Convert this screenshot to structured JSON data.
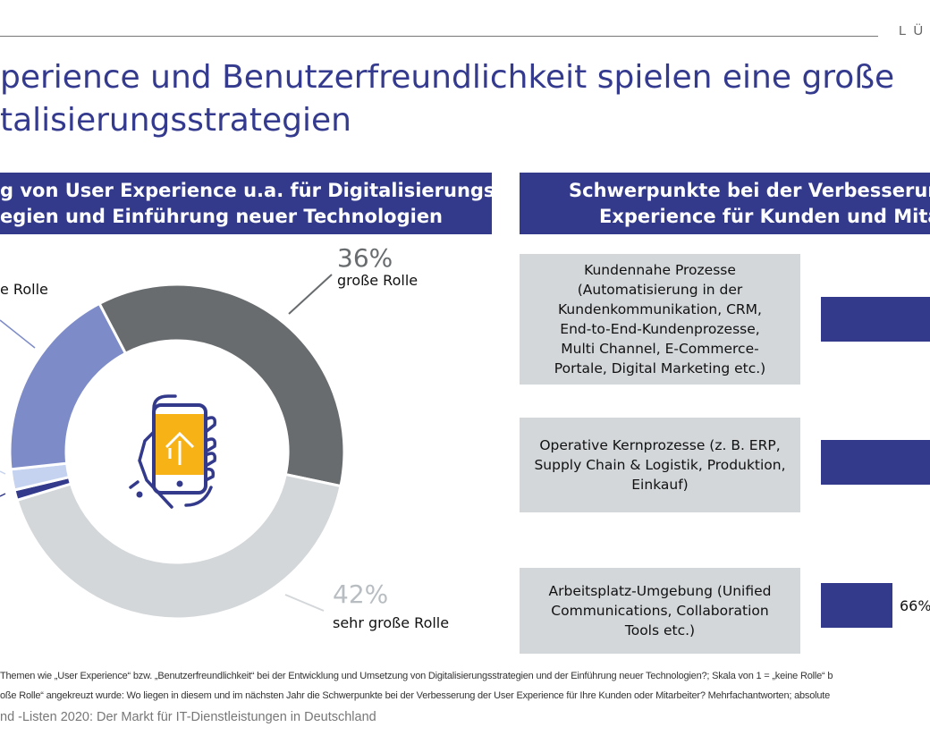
{
  "header": {
    "logo_text": "LÜ",
    "title_lines": [
      "perience und Benutzerfreundlichkeit spielen eine große",
      "talisierungsstrategien"
    ]
  },
  "left_panel": {
    "title_lines": [
      "g von User Experience u.a. für Digitalisierungs-",
      "egien und Einführung neuer Technologien"
    ]
  },
  "right_panel": {
    "title_lines": [
      "Schwerpunkte bei der Verbesserung",
      "Experience für Kunden und Mitar"
    ],
    "categories": [
      {
        "label": "Kundennahe Prozesse (Automatisierung in der Kundenkommunikation, CRM, End-to-End-Kundenprozesse, Multi Channel, E-Commerce-Portale, Digital Marketing etc.)",
        "value_label": ""
      },
      {
        "label": "Operative Kernprozesse (z. B. ERP, Supply Chain & Logistik, Produktion, Einkauf)",
        "value_label": ""
      },
      {
        "label": "Arbeitsplatz-Umgebung (Unified Communications, Collaboration Tools etc.)",
        "value_label": "66%"
      }
    ]
  },
  "chart_data": {
    "type": "pie",
    "donut": true,
    "slices": [
      {
        "label": "große Rolle",
        "value": 36,
        "value_label": "36%",
        "color": "#686c6e"
      },
      {
        "label": "sehr große Rolle",
        "value": 42,
        "value_label": "42%",
        "color": "#d3d7da"
      },
      {
        "label": "",
        "value": 1,
        "color": "#333a8c"
      },
      {
        "label": "",
        "value": 2,
        "color": "#c5d3f0"
      },
      {
        "label": "e Rolle",
        "value": 19,
        "color": "#7d8bc8"
      }
    ],
    "center_icon": "smartphone-in-hand-icon"
  },
  "footnotes": [
    "Themen wie „User Experience“ bzw. „Benutzerfreundlichkeit“ bei der Entwicklung und Umsetzung von Digitalisierungsstrategien und der Einführung neuer Technologien?; Skala von 1 = „keine Rolle“ b",
    "oße Rolle“ angekreuzt wurde: Wo liegen in diesem und im nächsten Jahr die Schwerpunkte bei der Verbesserung der User Experience für Ihre Kunden oder Mitarbeiter? Mehrfachantworten; absolute"
  ],
  "source": "nd -Listen 2020: Der Markt für IT-Dienstleistungen in Deutschland",
  "colors": {
    "brand": "#333a8c",
    "box": "#d3d7da"
  }
}
